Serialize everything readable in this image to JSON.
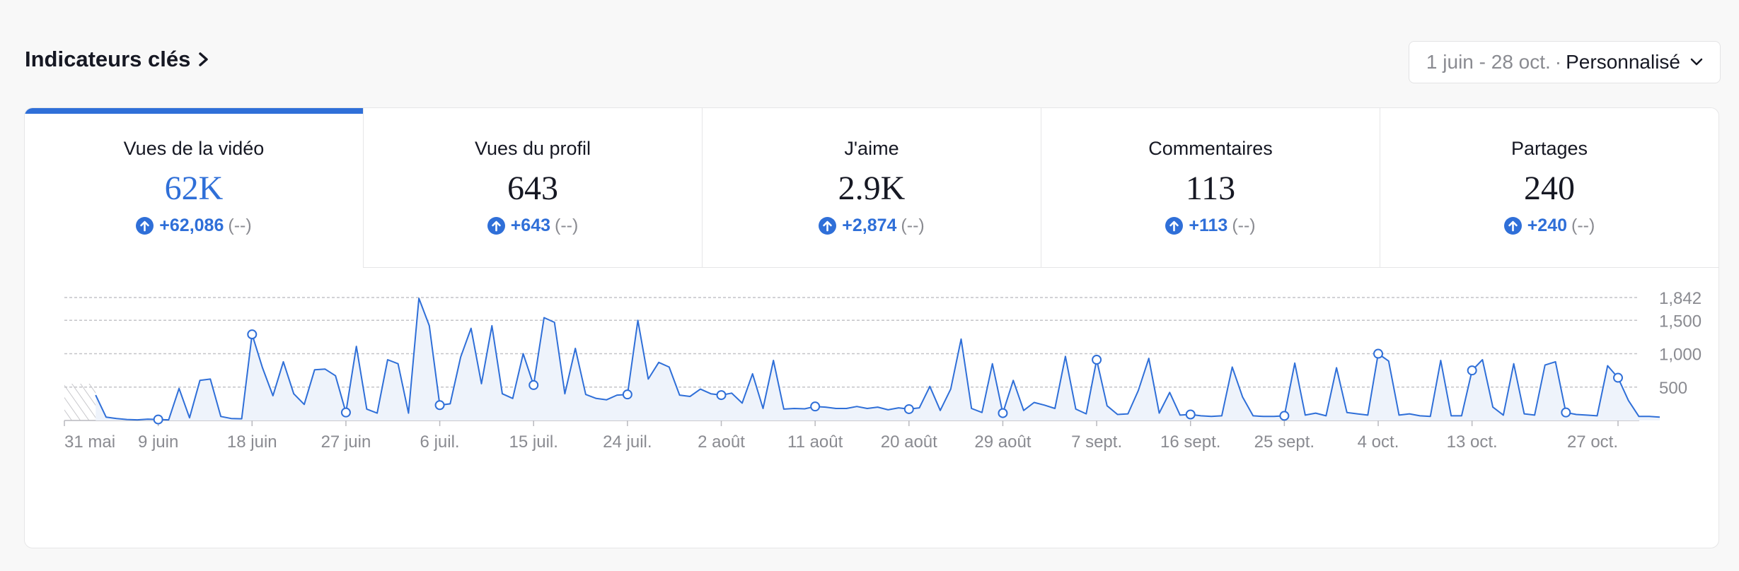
{
  "header": {
    "title": "Indicateurs clés",
    "date_range": "1 juin - 28 oct.",
    "separator": "·",
    "range_mode": "Personnalisé"
  },
  "tabs": [
    {
      "label": "Vues de la vidéo",
      "value": "62K",
      "delta": "+62,086",
      "compare": "(--)"
    },
    {
      "label": "Vues du profil",
      "value": "643",
      "delta": "+643",
      "compare": "(--)"
    },
    {
      "label": "J'aime",
      "value": "2.9K",
      "delta": "+2,874",
      "compare": "(--)"
    },
    {
      "label": "Commentaires",
      "value": "113",
      "delta": "+113",
      "compare": "(--)"
    },
    {
      "label": "Partages",
      "value": "240",
      "delta": "+240",
      "compare": "(--)"
    }
  ],
  "colors": {
    "accent": "#2f6fd8",
    "area_fill": "#eef3fb",
    "grid": "#c4c4c8",
    "axis_text": "#8a8b91"
  },
  "chart_data": {
    "type": "area",
    "series_name": "",
    "x_tick_labels": [
      "31 mai",
      "9 juin",
      "18 juin",
      "27 juin",
      "6 juil.",
      "15 juil.",
      "24 juil.",
      "2 août",
      "11 août",
      "20 août",
      "29 août",
      "7 sept.",
      "16 sept.",
      "25 sept.",
      "4 oct.",
      "13 oct.",
      "27 oct."
    ],
    "y_tick_labels": [
      "1,842",
      "1,500",
      "1,000",
      "500"
    ],
    "y_ticks": [
      1842,
      1500,
      1000,
      500
    ],
    "ylim": [
      0,
      1842
    ],
    "xlim": [
      0,
      149
    ],
    "x_tick_days": [
      0,
      9,
      18,
      27,
      36,
      45,
      54,
      63,
      72,
      81,
      90,
      99,
      108,
      117,
      126,
      135,
      149
    ],
    "no_data_until_day": 3,
    "values": [
      380,
      50,
      30,
      15,
      10,
      20,
      15,
      10,
      480,
      40,
      600,
      620,
      60,
      30,
      25,
      1290,
      790,
      370,
      880,
      400,
      240,
      760,
      770,
      670,
      120,
      1110,
      170,
      110,
      910,
      850,
      110,
      1830,
      1420,
      230,
      250,
      950,
      1380,
      550,
      1420,
      400,
      330,
      1000,
      530,
      1540,
      1470,
      400,
      1080,
      390,
      330,
      310,
      380,
      390,
      1500,
      620,
      870,
      800,
      380,
      360,
      470,
      400,
      380,
      410,
      260,
      700,
      180,
      900,
      170,
      180,
      175,
      210,
      200,
      180,
      180,
      210,
      180,
      200,
      160,
      190,
      170,
      190,
      510,
      150,
      470,
      1220,
      180,
      120,
      850,
      110,
      600,
      150,
      270,
      230,
      180,
      960,
      170,
      100,
      910,
      220,
      90,
      100,
      450,
      930,
      110,
      420,
      80,
      90,
      70,
      60,
      70,
      800,
      350,
      70,
      60,
      60,
      70,
      860,
      80,
      110,
      70,
      790,
      120,
      100,
      80,
      1000,
      890,
      80,
      100,
      70,
      60,
      900,
      70,
      70,
      750,
      910,
      200,
      80,
      850,
      100,
      80,
      830,
      880,
      120,
      90,
      80,
      70,
      820,
      640,
      300,
      60,
      60,
      50
    ],
    "markers": [
      9,
      18,
      27,
      36,
      45,
      54,
      63,
      72,
      81,
      90,
      99,
      108,
      117,
      126,
      135,
      144,
      149
    ]
  }
}
